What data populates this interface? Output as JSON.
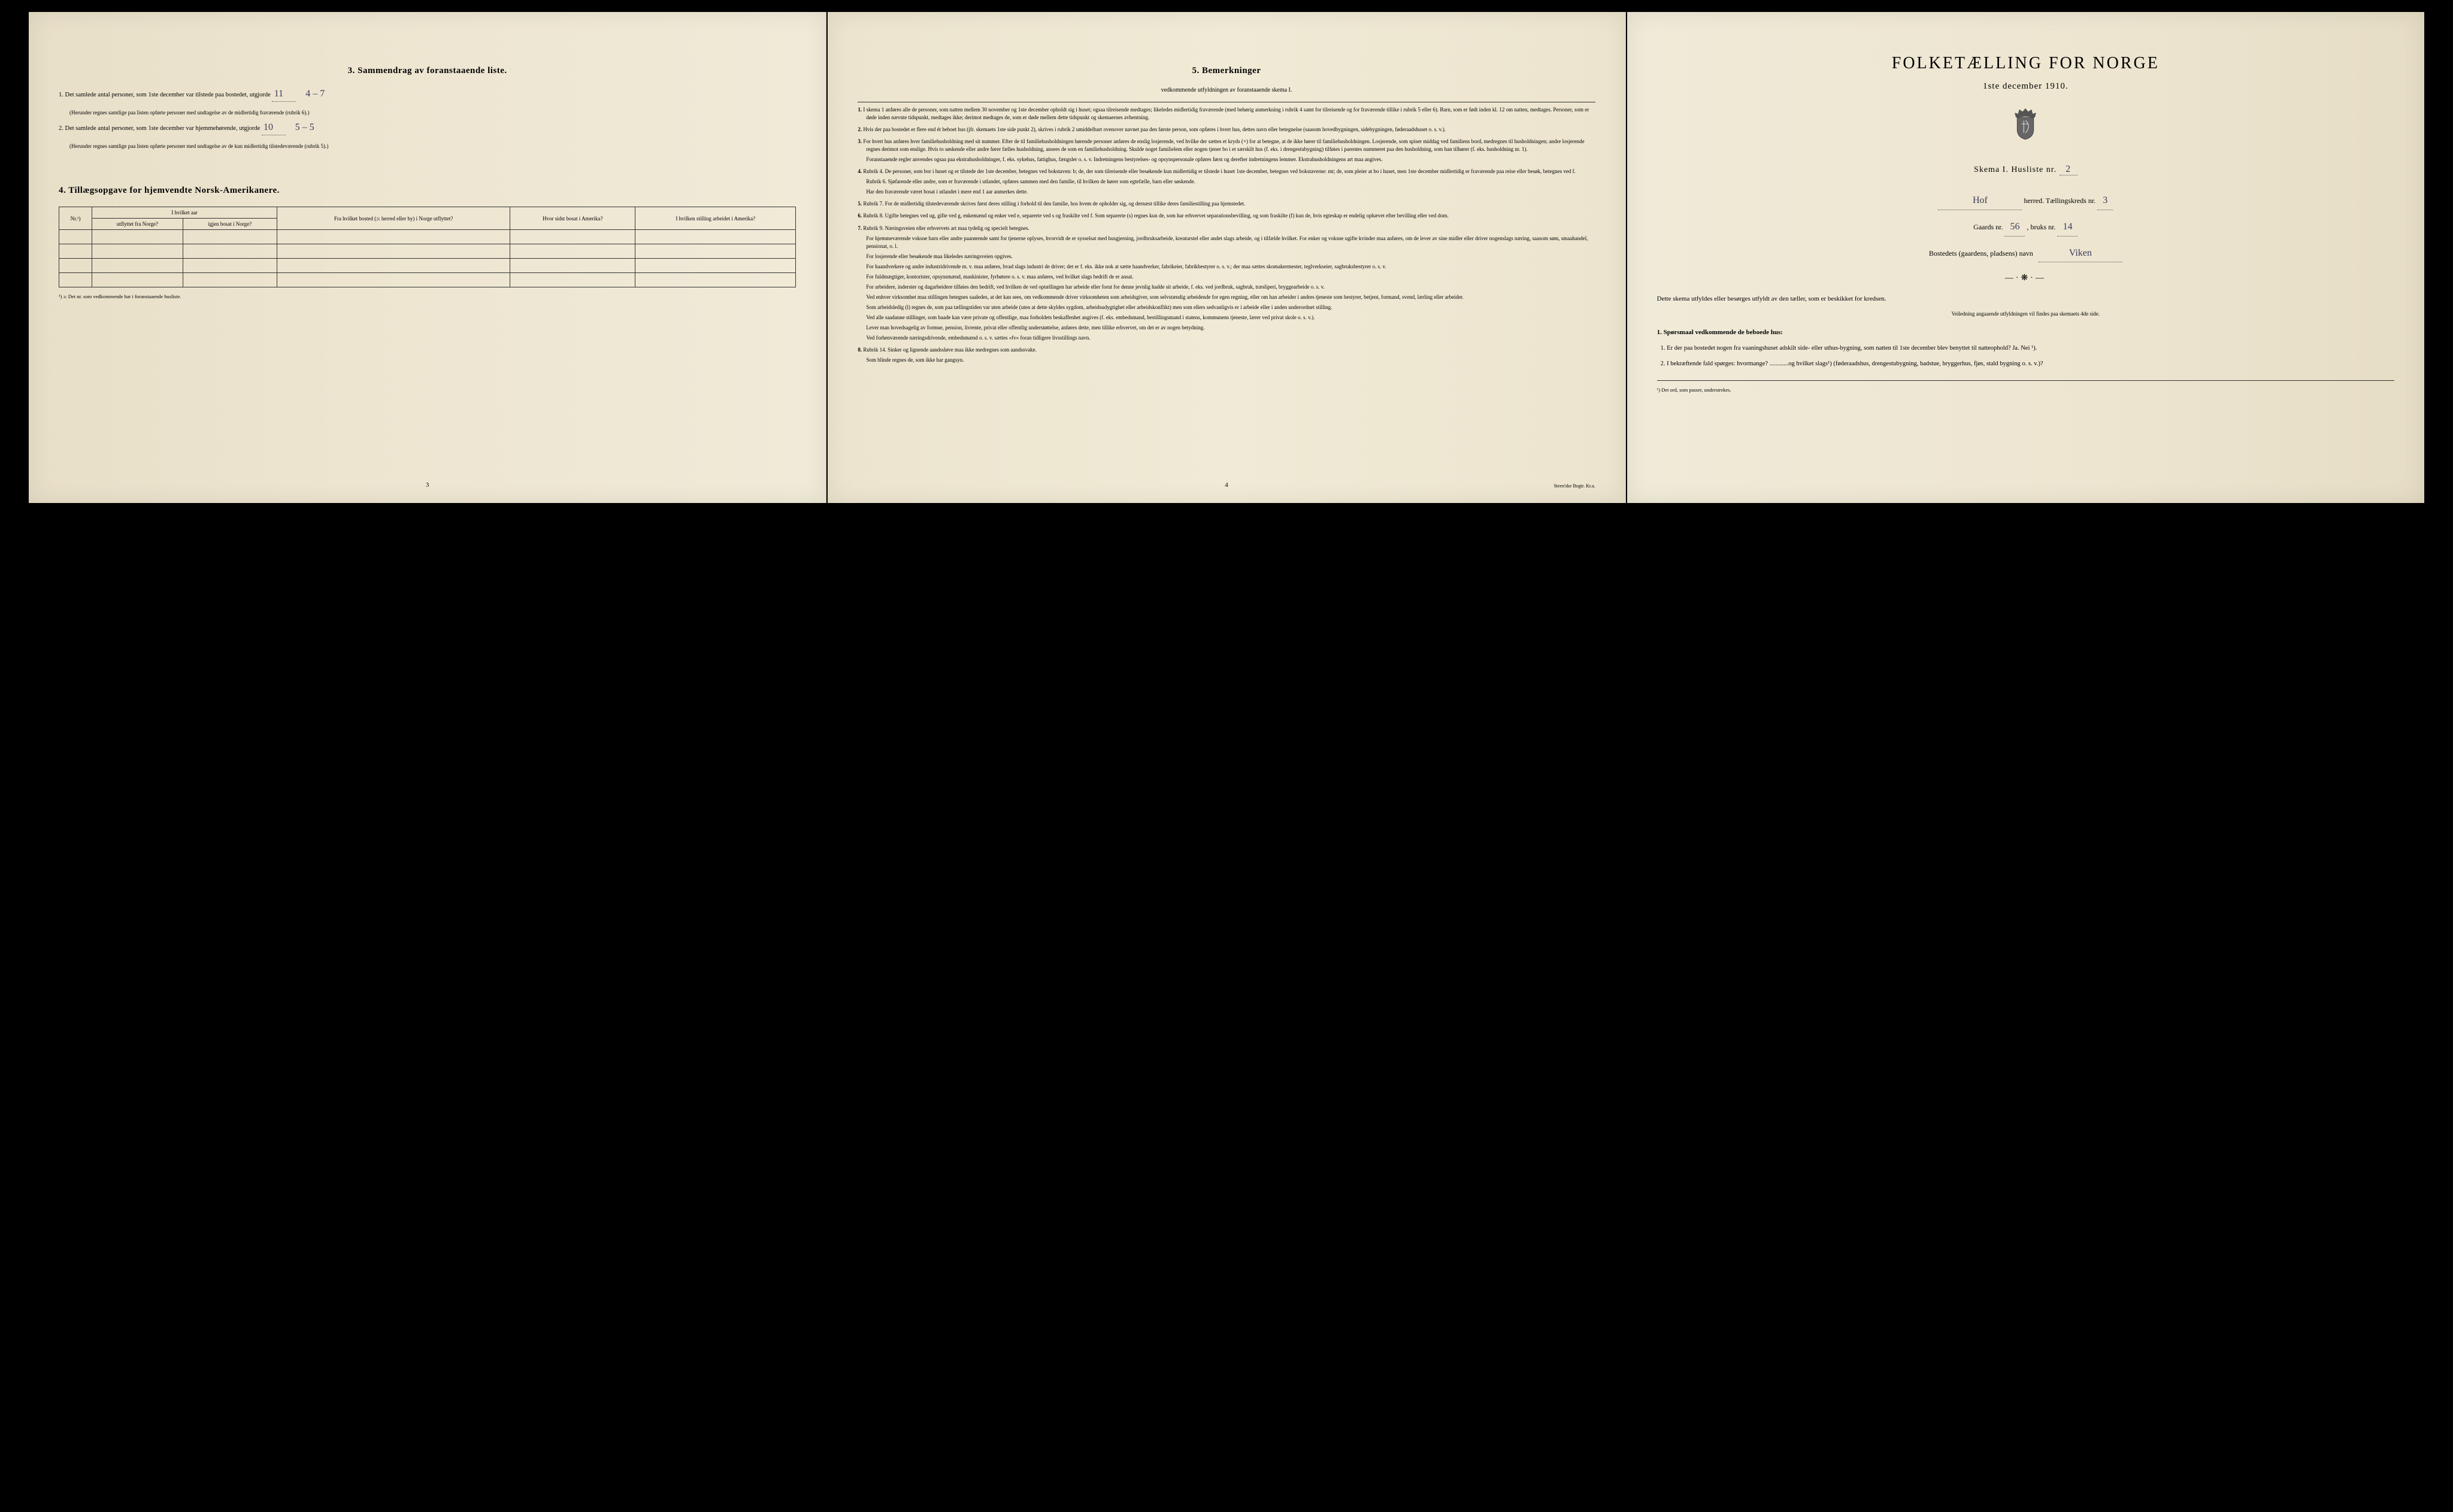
{
  "colors": {
    "paper": "#ede5d0",
    "ink": "#1a1a1a",
    "handwriting": "#3a3a5a"
  },
  "leftPage": {
    "section3": {
      "title": "3.  Sammendrag av foranstaaende liste.",
      "item1_prefix": "1.  Det samlede antal personer, som 1ste december var tilstede paa bostedet, utgjorde",
      "item1_hand": "11",
      "item1_hand2": "4 – 7",
      "item1_note": "(Herunder regnes samtlige paa listen opførte personer med undtagelse av de midlertidig fraværende (rubrik 6).)",
      "item2_prefix": "2.  Det samlede antal personer, som 1ste december var hjemmehørende, utgjorde",
      "item2_hand": "10",
      "item2_hand2": "5 – 5",
      "item2_note": "(Herunder regnes samtlige paa listen opførte personer med undtagelse av de kun midlertidig tilstedeværende (rubrik 5).)"
    },
    "section4": {
      "title": "4.  Tillægsopgave for hjemvendte Norsk-Amerikanere.",
      "headers": {
        "nr": "Nr.¹)",
        "col1_top": "I hvilket aar",
        "col1a": "utflyttet fra Norge?",
        "col1b": "igjen bosat i Norge?",
        "col2": "Fra hvilket bosted (ɔ: herred eller by) i Norge utflyttet?",
        "col3": "Hvor sidst bosat i Amerika?",
        "col4": "I hvilken stilling arbeidet i Amerika?"
      },
      "footnote": "¹) ɔ: Det nr. som vedkommende har i foranstaaende husliste.",
      "rowCount": 4
    },
    "pageNum": "3"
  },
  "middlePage": {
    "title": "5.  Bemerkninger",
    "subtitle": "vedkommende utfyldningen av foranstaaende skema I.",
    "items": [
      "I skema 1 anføres alle de personer, som natten mellem 30 november og 1ste december opholdt sig i huset; ogsaa tilreisende medtages; likeledes midlertidig fraværende (med behørig anmerkning i rubrik 4 samt for tilreisende og for fraværende tillike i rubrik 5 eller 6). Barn, som er født inden kl. 12 om natten, medtages. Personer, som er døde inden nævnte tidspunkt, medtages ikke; derimot medtages de, som er døde mellem dette tidspunkt og skemaernes avhentning.",
      "Hvis der paa bostedet er flere end ét beboet hus (jfr. skemaets 1ste side punkt 2), skrives i rubrik 2 umiddelbart ovenover navnet paa den første person, som opføres i hvert hus, dettes navn eller betegnelse (saasom hovedbygningen, sidebygningen, føderaadshuset o. s. v.).",
      "For hvert hus anføres hver familiehusholdning med sit nummer. Efter de til familiehusholdningen hørende personer anføres de enslig losjerende, ved hvilke der sættes et kryds (×) for at betegne, at de ikke hører til familiehusholdningen. Losjerende, som spiser middag ved familiens bord, medregnes til husholdningen; andre losjerende regnes derimot som enslige. Hvis to søskende eller andre fører fælles husholdning, ansees de som en familiehusholdning. Skulde noget familielem eller nogen tjener bo i et særskilt hus (f. eks. i drengestubygning) tilføies i parentes nummeret paa den husholdning, som han tilhører (f. eks. husholdning nr. 1).\n    Foranstaaende regler anvendes ogsaa paa ekstrahusholdninger, f. eks. sykehus, fattighus, fængsler o. s. v.  Indretningens bestyrelses- og opsynspersonale opføres først og derefter indretningens lemmer. Ekstrahusholdningens art maa angives.",
      "Rubrik 4.  De personer, som bor i huset og er tilstede der 1ste december, betegnes ved bokstaven: b;  de, der som tilreisende eller besøkende kun midlertidig er tilstede i huset 1ste december, betegnes ved bokstaverne: mt;  de, som pleier at bo i huset, men 1ste december midlertidig er fraværende paa reise eller besøk, betegnes ved f.\n    Rubrik 6. Sjøfarende eller andre, som er fraværende i utlandet, opføres sammen med den familie, til hvilken de hører som egtefælle, barn eller søskende.\n    Har den fraværende været bosat i utlandet i mere end 1 aar anmerkes dette.",
      "Rubrik 7.  For de midlertidig tilstedeværende skrives først deres stilling i forhold til den familie, hos hvem de opholder sig, og dernæst tillike deres familiestilling paa hjemstedet.",
      "Rubrik 8.  Ugifte betegnes ved ug, gifte ved g, enkemænd og enker ved e, separerte ved s og fraskilte ved f.  Som separerte (s) regnes kun de, som har erhvervet separationsbevilling, og som fraskilte (f) kun de, hvis egteskap er endelig ophævet efter bevilling eller ved dom.",
      "Rubrik 9.  Næringsveien eller erhvervets art maa tydelig og specielt betegnes.\n    For hjemmeværende voksne barn eller andre paarørende samt for tjenerne oplyses, hvorvidt de er sysselsat med husgjerning, jordbruksarbeide, kreaturstel eller andet slags arbeide, og i tilfælde hvilket.  For enker og voksne ugifte kvinder maa anføres, om de lever av sine midler eller driver nogenslags næring, saasom søm, smaahandel, pensionat, o. l.\n    For losjerende eller besøkende maa likeledes næringsveien opgives.\n    For haandverkere og andre industridrivende m. v. maa anføres, hvad slags industri de driver; det er f. eks. ikke nok at sætte haandverker, fabrikeier, fabrikbestyrer o. s. v.; der maa sættes skomakermester, teglverkseier, sagbruksbestyrer o. s. v.\n    For fuldmægtiger, kontorister, opsynsmænd, maskinister, fyrbøtere o. s. v. maa anføres, ved hvilket slags bedrift de er ansat.\n    For arbeidere, inderster og dagarbeidere tilføies den bedrift, ved hvilken de ved optællingen har arbeide eller forut for denne jevnlig hadde sit arbeide, f. eks. ved jordbruk, sagbruk, træsliperi, bryggearbeide o. s. v.\n    Ved enhver virksomhet maa stillingen betegnes saaledes, at det kan sees, om vedkommende driver virksomheten som arbeidsgiver, som selvstændig arbeidende for egen regning, eller om han arbeider i andres tjeneste som bestyrer, betjent, formand, svend, lærling eller arbeider.\n    Som arbeidsledig (l) regnes de, som paa tællingstiden var uten arbeide (uten at dette skyldes sygdom, arbeidsudygtighet eller arbeidskonflikt) men som ellers sedvanligvis er i arbeide eller i anden underordnet stilling.\n    Ved alle saadanne stillinger, som baade kan være private og offentlige, maa forholdets beskaffenhet angives (f. eks. embedsmand, bestillingsmand i statens, kommunens tjeneste, lærer ved privat skole o. s. v.).\n    Lever man hovedsagelig av formue, pension, livrente, privat eller offentlig understøttelse, anføres dette, men tillike erhvervet, om det er av nogen betydning.\n    Ved forhenværende næringsdrivende, embedsmænd o. s. v. sættes «fv» foran tidligere livsstillings navn.",
      "Rubrik 14.  Sinker og lignende aandssløve maa ikke medregnes som aandssvake.\n    Som blinde regnes de, som ikke har gangsyn."
    ],
    "pageNum": "4",
    "printer": "Steen'ske Bogtr.   Kr.a."
  },
  "rightPage": {
    "title": "FOLKETÆLLING FOR NORGE",
    "subtitle": "1ste december 1910.",
    "skemaLabel": "Skema I.  Husliste nr.",
    "skemaHand": "2",
    "herredHand": "Hof",
    "herredLabel": "herred.  Tællingskreds nr.",
    "kredsHand": "3",
    "gaardsLabel": "Gaards nr.",
    "gaardsHand": "56",
    "bruksLabel": ", bruks nr.",
    "bruksHand": "14",
    "bostedLabel": "Bostedets (gaardens, pladsens) navn",
    "bostedHand": "Viken",
    "para1": "Dette skema utfyldes eller besørges utfyldt av den tæller, som er beskikket for kredsen.",
    "instruction": "Veiledning angaaende utfyldningen vil findes paa skemaets 4de side.",
    "q_heading": "1. Spørsmaal vedkommende de beboede hus:",
    "q1": "1.  Er der paa bostedet nogen fra vaaningshuset adskilt side- eller uthus-bygning, som natten til 1ste december blev benyttet til natteophold?    Ja.    Nei ¹).",
    "q2": "2.  I bekræftende fald spørges:  hvormange? ............og hvilket slags¹)  (føderaadshus, drengestubygning, badstue, bryggerhus, fjøs, stald bygning o. s. v.)?",
    "footnote": "¹) Det ord, som passer, understrekes."
  }
}
